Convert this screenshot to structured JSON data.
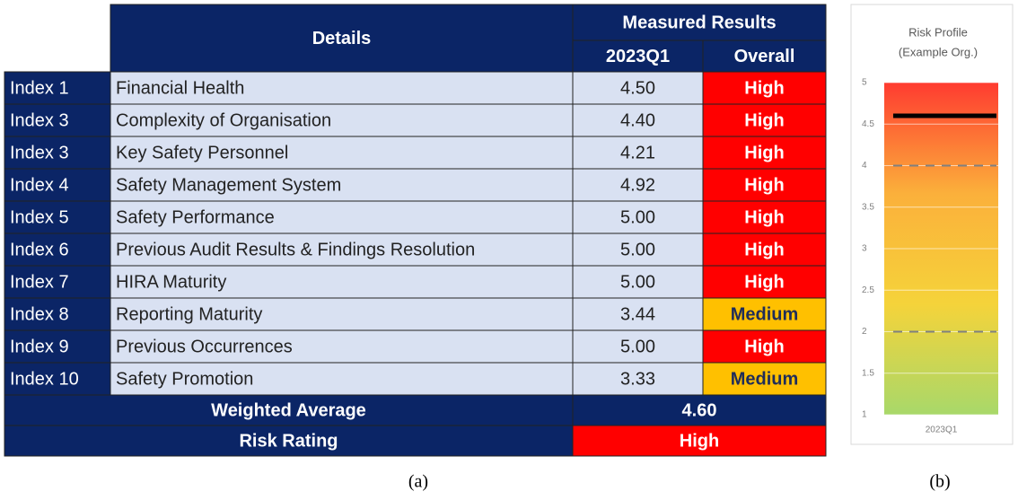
{
  "table": {
    "header": {
      "details": "Details",
      "measured": "Measured Results",
      "period": "2023Q1",
      "overall": "Overall"
    },
    "rows": [
      {
        "index": "Index 1",
        "detail": "Financial Health",
        "value": "4.50",
        "rating": "High",
        "color": "#ff0000"
      },
      {
        "index": "Index 3",
        "detail": "Complexity of Organisation",
        "value": "4.40",
        "rating": "High",
        "color": "#ff0000"
      },
      {
        "index": "Index 3",
        "detail": "Key Safety Personnel",
        "value": "4.21",
        "rating": "High",
        "color": "#ff0000"
      },
      {
        "index": "Index 4",
        "detail": "Safety Management System",
        "value": "4.92",
        "rating": "High",
        "color": "#ff0000"
      },
      {
        "index": "Index 5",
        "detail": "Safety Performance",
        "value": "5.00",
        "rating": "High",
        "color": "#ff0000"
      },
      {
        "index": "Index 6",
        "detail": "Previous Audit Results & Findings Resolution",
        "value": "5.00",
        "rating": "High",
        "color": "#ff0000"
      },
      {
        "index": "Index 7",
        "detail": "HIRA Maturity",
        "value": "5.00",
        "rating": "High",
        "color": "#ff0000"
      },
      {
        "index": "Index 8",
        "detail": "Reporting Maturity",
        "value": "3.44",
        "rating": "Medium",
        "color": "#ffc000"
      },
      {
        "index": "Index 9",
        "detail": "Previous Occurrences",
        "value": "5.00",
        "rating": "High",
        "color": "#ff0000"
      },
      {
        "index": "Index 10",
        "detail": "Safety Promotion",
        "value": "3.33",
        "rating": "Medium",
        "color": "#ffc000"
      }
    ],
    "summary": [
      {
        "label": "Weighted Average",
        "value": "4.60"
      },
      {
        "label": "Risk Rating",
        "value": "High",
        "color": "#ff0000"
      }
    ],
    "caption": "(a)"
  },
  "chart_data": {
    "type": "level",
    "title": [
      "Risk Profile",
      "(Example Org.)"
    ],
    "categories": [
      "2023Q1"
    ],
    "values": [
      4.6
    ],
    "reference_lines": [
      4,
      2
    ],
    "ylim": [
      1,
      5
    ],
    "yticks": [
      1,
      1.5,
      2,
      2.5,
      3,
      3.5,
      4,
      4.5,
      5
    ],
    "grid": true,
    "gradient": [
      "#ff3b30",
      "#fbb03b",
      "#f5d33a",
      "#a8d86a"
    ],
    "color": "#000000",
    "caption": "(b)"
  }
}
